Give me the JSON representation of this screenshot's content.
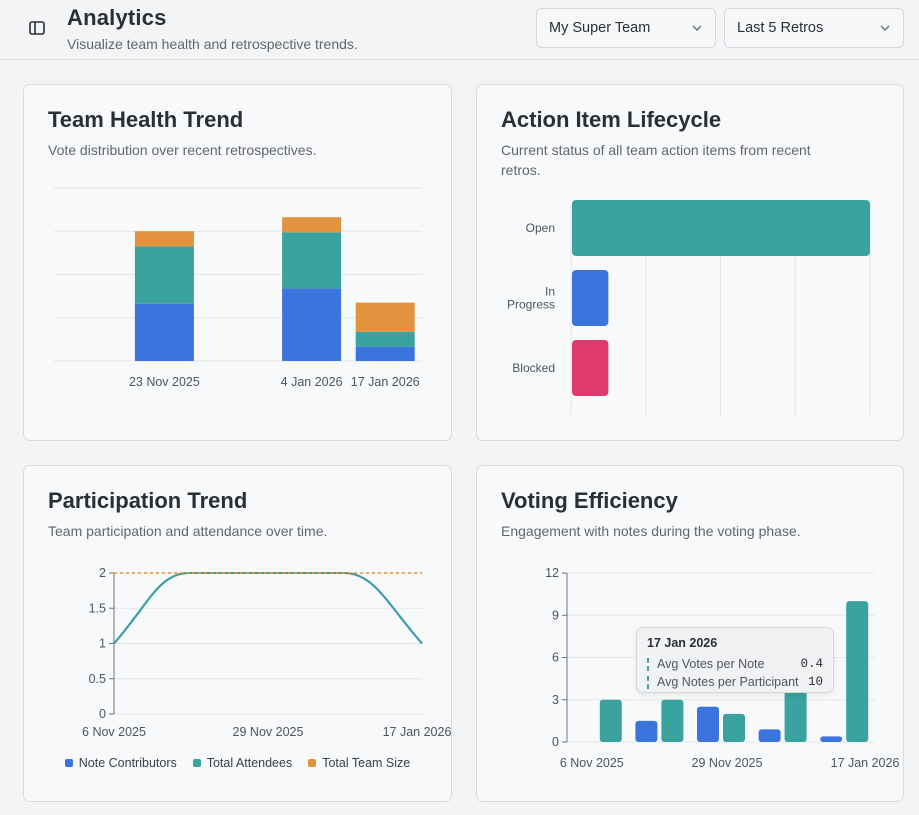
{
  "header": {
    "title": "Analytics",
    "subtitle": "Visualize team health and retrospective trends.",
    "team_select": "My Super Team",
    "range_select": "Last 5 Retros"
  },
  "colors": {
    "blue": "#3b74dc",
    "teal": "#3aa39f",
    "orange": "#e39240",
    "pink": "#de3a6d"
  },
  "cards": {
    "health": {
      "title": "Team Health Trend",
      "desc": "Vote distribution over recent retrospectives."
    },
    "actions": {
      "title": "Action Item Lifecycle",
      "desc_line1": "Current status of all team action items from recent",
      "desc_line2": "retros."
    },
    "participation": {
      "title": "Participation Trend",
      "desc": "Team participation and attendance over time."
    },
    "voting": {
      "title": "Voting Efficiency",
      "desc": "Engagement with notes during the voting phase."
    }
  },
  "chart_data": [
    {
      "type": "bar",
      "title": "Team Health Trend",
      "stacked": true,
      "tick_labels": [
        "23 Nov 2025",
        "4 Jan 2026",
        "17 Jan 2026"
      ],
      "categories": [
        "23 Nov 2025",
        "4 Jan 2026",
        "17 Jan 2026"
      ],
      "category_slots": [
        1,
        3,
        4
      ],
      "slot_count": 5,
      "ylim": [
        0,
        8
      ],
      "series": [
        {
          "name": "Blue",
          "color": "#3b74dc",
          "values": [
            2.65,
            3.35,
            0.65
          ]
        },
        {
          "name": "Teal",
          "color": "#3aa39f",
          "values": [
            2.65,
            2.6,
            0.7
          ]
        },
        {
          "name": "Orange",
          "color": "#e39240",
          "values": [
            0.7,
            0.7,
            1.35
          ]
        }
      ]
    },
    {
      "type": "bar",
      "orientation": "horizontal",
      "title": "Action Item Lifecycle",
      "categories": [
        "Open",
        "In Progress",
        "Blocked"
      ],
      "category_lines": [
        [
          "Open"
        ],
        [
          "In",
          "Progress"
        ],
        [
          "Blocked"
        ]
      ],
      "values": [
        8,
        1,
        1
      ],
      "colors": [
        "#3aa39f",
        "#3b74dc",
        "#de3a6d"
      ],
      "xlim": [
        0,
        8
      ]
    },
    {
      "type": "line",
      "title": "Participation Trend",
      "x_ticks": [
        "6 Nov 2025",
        "29 Nov 2025",
        "17 Jan 2026"
      ],
      "y_ticks": [
        "0",
        "0.5",
        "1",
        "1.5",
        "2"
      ],
      "ylim": [
        0,
        2
      ],
      "x": [
        0,
        1,
        2,
        3
      ],
      "series": [
        {
          "name": "Note Contributors",
          "color": "#3b74dc",
          "values": [
            1,
            2,
            2,
            1
          ]
        },
        {
          "name": "Total Attendees",
          "color": "#3aa39f",
          "values": [
            1,
            2,
            2,
            1
          ]
        },
        {
          "name": "Total Team Size",
          "color": "#e39240",
          "values": [
            2,
            2,
            2,
            2
          ],
          "dashed": true
        }
      ],
      "legend": [
        "Note Contributors",
        "Total Attendees",
        "Total Team Size"
      ]
    },
    {
      "type": "bar",
      "title": "Voting Efficiency",
      "x_ticks": [
        "6 Nov 2025",
        "29 Nov 2025",
        "17 Jan 2026"
      ],
      "y_ticks": [
        "0",
        "3",
        "6",
        "9",
        "12"
      ],
      "ylim": [
        0,
        12
      ],
      "categories": [
        "6 Nov 2025",
        "",
        "29 Nov 2025",
        "",
        "17 Jan 2026"
      ],
      "series": [
        {
          "name": "Avg Votes per Note",
          "color": "#3b74dc",
          "values": [
            0,
            1.5,
            2.5,
            0.9,
            0.4
          ]
        },
        {
          "name": "Avg Notes per Participant",
          "color": "#3aa39f",
          "values": [
            3,
            3,
            2,
            4,
            10
          ]
        }
      ],
      "tooltip": {
        "title": "17 Jan 2026",
        "rows": [
          {
            "label": "Avg Votes per Note",
            "value": "0.4"
          },
          {
            "label": "Avg Notes per Participant",
            "value": "10"
          }
        ]
      }
    }
  ]
}
